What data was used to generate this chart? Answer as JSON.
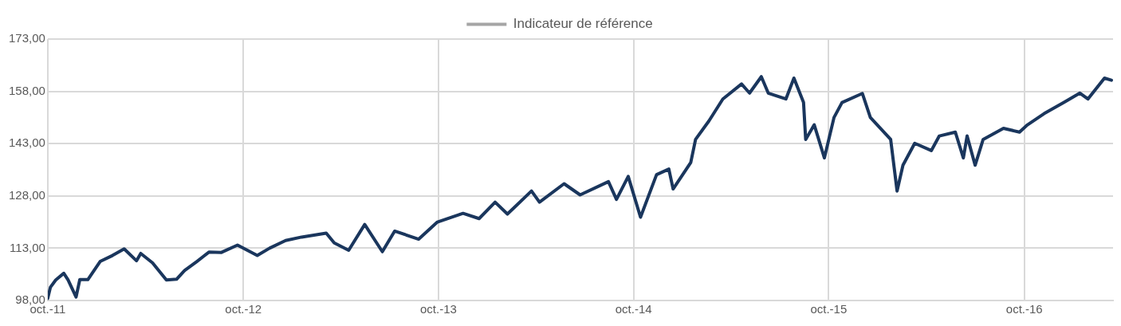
{
  "chart_data": {
    "type": "line",
    "legend": "top",
    "grid": true,
    "marker": "none",
    "line_style": "solid",
    "xlim": [
      "2011-10-01",
      "2017-03-16"
    ],
    "xticks": [
      {
        "value": "2011-10-01",
        "label": "oct.-11"
      },
      {
        "value": "2012-10-01",
        "label": "oct.-12"
      },
      {
        "value": "2013-10-01",
        "label": "oct.-13"
      },
      {
        "value": "2014-10-01",
        "label": "oct.-14"
      },
      {
        "value": "2015-10-01",
        "label": "oct.-15"
      },
      {
        "value": "2016-10-01",
        "label": "oct.-16"
      }
    ],
    "ylim": [
      98,
      173
    ],
    "yticks": [
      {
        "value": 98,
        "label": "98,00"
      },
      {
        "value": 113,
        "label": "113,00"
      },
      {
        "value": 128,
        "label": "128,00"
      },
      {
        "value": 143,
        "label": "143,00"
      },
      {
        "value": 158,
        "label": "158,00"
      },
      {
        "value": 173,
        "label": "173,00"
      }
    ],
    "series": [
      {
        "color": "#1a365d",
        "x": [
          "2011-10-01",
          "2011-10-06",
          "2011-10-16",
          "2011-10-31",
          "2011-11-08",
          "2011-11-23",
          "2011-11-30",
          "2011-12-15",
          "2012-01-07",
          "2012-01-30",
          "2012-02-21",
          "2012-03-15",
          "2012-03-23",
          "2012-04-14",
          "2012-05-10",
          "2012-05-29",
          "2012-06-13",
          "2012-07-06",
          "2012-07-29",
          "2012-08-21",
          "2012-09-20",
          "2012-10-27",
          "2012-11-19",
          "2012-12-19",
          "2013-01-18",
          "2013-03-05",
          "2013-03-20",
          "2013-04-16",
          "2013-05-16",
          "2013-06-18",
          "2013-07-11",
          "2013-08-25",
          "2013-09-29",
          "2013-11-16",
          "2013-12-16",
          "2014-01-15",
          "2014-02-07",
          "2014-03-24",
          "2014-04-08",
          "2014-05-24",
          "2014-06-23",
          "2014-08-15",
          "2014-08-30",
          "2014-09-21",
          "2014-10-14",
          "2014-11-13",
          "2014-12-06",
          "2014-12-14",
          "2015-01-16",
          "2015-01-25",
          "2015-02-19",
          "2015-03-17",
          "2015-04-21",
          "2015-05-06",
          "2015-05-28",
          "2015-06-10",
          "2015-07-13",
          "2015-07-28",
          "2015-08-15",
          "2015-08-19",
          "2015-09-04",
          "2015-09-23",
          "2015-10-11",
          "2015-10-26",
          "2015-12-03",
          "2015-12-18",
          "2016-01-25",
          "2016-02-06",
          "2016-02-17",
          "2016-03-10",
          "2016-04-10",
          "2016-04-25",
          "2016-05-25",
          "2016-06-09",
          "2016-06-16",
          "2016-07-01",
          "2016-07-16",
          "2016-08-23",
          "2016-09-22",
          "2016-10-07",
          "2016-11-07",
          "2016-12-14",
          "2017-01-13",
          "2017-01-28",
          "2017-02-28",
          "2017-03-13"
        ],
        "values": [
          98.6,
          101.8,
          103.9,
          105.8,
          103.9,
          99,
          104,
          104,
          109.2,
          110.9,
          112.8,
          109.4,
          111.5,
          108.8,
          103.9,
          104.1,
          106.6,
          109.2,
          111.9,
          111.8,
          113.9,
          110.9,
          113,
          115.2,
          116.2,
          117.3,
          114.5,
          112.4,
          119.8,
          112,
          117.9,
          115.6,
          120.5,
          123,
          121.5,
          126.2,
          122.8,
          129.4,
          126.2,
          131.5,
          128.3,
          132.1,
          127,
          133.6,
          121.9,
          134.1,
          135.7,
          130,
          137.6,
          144.2,
          149.5,
          155.8,
          160.1,
          157.5,
          162.2,
          157.5,
          155.8,
          161.8,
          154.8,
          144.2,
          148.4,
          138.9,
          150.5,
          154.8,
          157.4,
          150.5,
          144.2,
          129.4,
          136.8,
          143.1,
          141,
          145.2,
          146.3,
          138.9,
          145.2,
          136.8,
          144.2,
          147.4,
          146.3,
          148.4,
          151.6,
          154.8,
          157.5,
          155.8,
          161.8,
          161.2
        ]
      },
      {
        "name": "Indicateur de référence",
        "color": "#a5a5a5"
      }
    ]
  }
}
